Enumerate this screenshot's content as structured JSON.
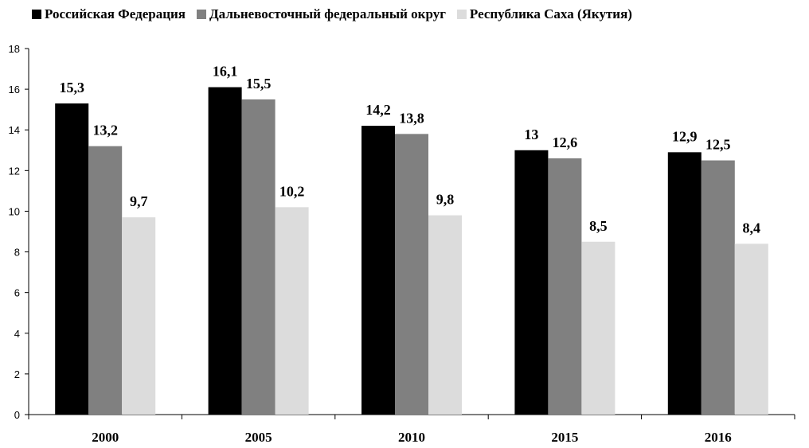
{
  "chart_data": {
    "type": "bar",
    "title": "",
    "xlabel": "",
    "ylabel": "",
    "categories": [
      "2000",
      "2005",
      "2010",
      "2015",
      "2016"
    ],
    "ylim": [
      0,
      18
    ],
    "yticks": [
      0,
      2,
      4,
      6,
      8,
      10,
      12,
      14,
      16,
      18
    ],
    "grid": false,
    "legend_position": "top",
    "series": [
      {
        "name": "Российская Федерация",
        "color": "#000000",
        "values": [
          15.3,
          16.1,
          14.2,
          13,
          12.9
        ],
        "labels": [
          "15,3",
          "16,1",
          "14,2",
          "13",
          "12,9"
        ]
      },
      {
        "name": "Дальневосточный федеральный округ",
        "color": "#808080",
        "values": [
          13.2,
          15.5,
          13.8,
          12.6,
          12.5
        ],
        "labels": [
          "13,2",
          "15,5",
          "13,8",
          "12,6",
          "12,5"
        ]
      },
      {
        "name": "Республика Саха (Якутия)",
        "color": "#dcdcdc",
        "values": [
          9.7,
          10.2,
          9.8,
          8.5,
          8.4
        ],
        "labels": [
          "9,7",
          "10,2",
          "9,8",
          "8,5",
          "8,4"
        ]
      }
    ]
  }
}
